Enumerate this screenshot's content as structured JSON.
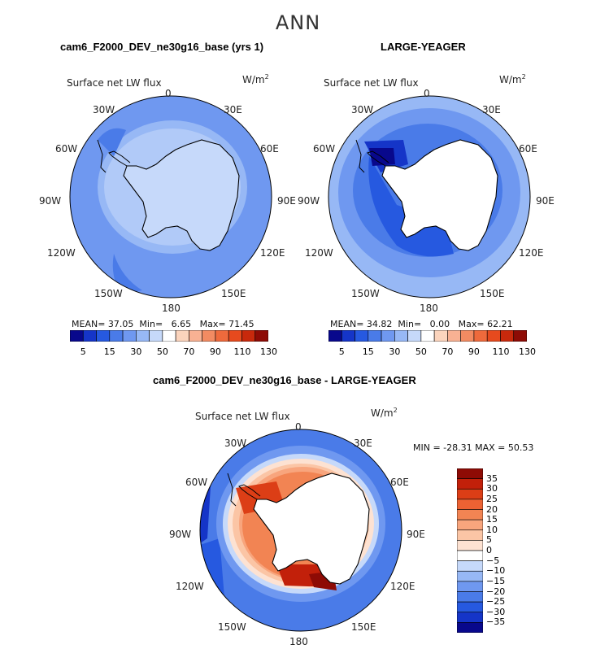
{
  "figure": {
    "title": "ANN"
  },
  "colors": {
    "seq": [
      "#08088c",
      "#1535c8",
      "#2659e0",
      "#4a7be8",
      "#6f98f0",
      "#97b8f5",
      "#c6d9fa",
      "#ffffff",
      "#fbd4bd",
      "#f8b193",
      "#f28b62",
      "#ee6a3c",
      "#e64a1e",
      "#c8290c",
      "#8e0b05"
    ],
    "diff": [
      "#08088c",
      "#1535c8",
      "#2659e0",
      "#4a7be8",
      "#6f98f0",
      "#97b8f5",
      "#c6d9fa",
      "#ffffff",
      "#fde2d2",
      "#fbc5a5",
      "#f8a57d",
      "#f28453",
      "#ec6233",
      "#dc3e16",
      "#c2200a",
      "#8e0b05"
    ],
    "land": "#ffffff",
    "coast": "#000000"
  },
  "panels": [
    {
      "title": "cam6_F2000_DEV_ne30g16_base (yrs 1)",
      "variable": "Surface net LW flux",
      "units": "W/m",
      "units_sup": "2",
      "stats": {
        "mean_label": "MEAN=",
        "mean": "37.05",
        "min_label": "Min=",
        "min": "6.65",
        "max_label": "Max=",
        "max": "71.45"
      },
      "colorbar_ticks": [
        "5",
        "15",
        "30",
        "50",
        "70",
        "90",
        "110",
        "130"
      ],
      "ocean_color": "#6f98f0"
    },
    {
      "title": "LARGE-YEAGER",
      "variable": "Surface net LW flux",
      "units": "W/m",
      "units_sup": "2",
      "stats": {
        "mean_label": "MEAN=",
        "mean": "34.82",
        "min_label": "Min=",
        "min": "0.00",
        "max_label": "Max=",
        "max": "62.21"
      },
      "colorbar_ticks": [
        "5",
        "15",
        "30",
        "50",
        "70",
        "90",
        "110",
        "130"
      ],
      "ocean_color": "#4a7be8"
    },
    {
      "title": "cam6_F2000_DEV_ne30g16_base - LARGE-YEAGER",
      "variable": "Surface net LW flux",
      "units": "W/m",
      "units_sup": "2",
      "stats": {
        "minmax": "MIN = -28.31 MAX =  50.53"
      },
      "colorbar_ticks": [
        "35",
        "30",
        "25",
        "20",
        "15",
        "10",
        "5",
        "0",
        "−5",
        "−10",
        "−15",
        "−20",
        "−25",
        "−30",
        "−35"
      ],
      "ocean_color": "#2659e0"
    }
  ],
  "longitudes": {
    "n": "0",
    "ne1": "30E",
    "ne2": "60E",
    "e": "90E",
    "se2": "120E",
    "se1": "150E",
    "s": "180",
    "sw1": "150W",
    "sw2": "120W",
    "w": "90W",
    "nw2": "60W",
    "nw1": "30W"
  }
}
